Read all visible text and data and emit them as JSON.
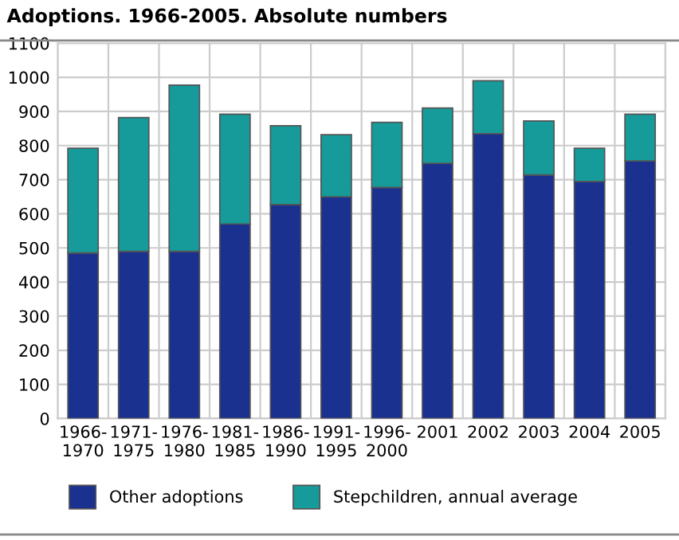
{
  "chart_data": {
    "type": "bar",
    "title": "Adoptions. 1966-2005. Absolute numbers",
    "categories": [
      "1966-\n1970",
      "1971-\n1975",
      "1976-\n1980",
      "1981-\n1985",
      "1986-\n1990",
      "1991-\n1995",
      "1996-\n2000",
      "2001",
      "2002",
      "2003",
      "2004",
      "2005"
    ],
    "stacked": true,
    "series": [
      {
        "name": "Other adoptions",
        "color": "#1a318f",
        "values": [
          485,
          490,
          490,
          570,
          627,
          650,
          677,
          748,
          835,
          714,
          695,
          755
        ]
      },
      {
        "name": "Stepchildren, annual average",
        "color": "#169a9a",
        "values": [
          307,
          392,
          487,
          322,
          231,
          182,
          191,
          162,
          155,
          158,
          97,
          137
        ]
      }
    ],
    "ylim": [
      0,
      1100
    ],
    "yticks": [
      0,
      100,
      200,
      300,
      400,
      500,
      600,
      700,
      800,
      900,
      1000,
      1100
    ],
    "grid": true,
    "legend": "bottom"
  }
}
